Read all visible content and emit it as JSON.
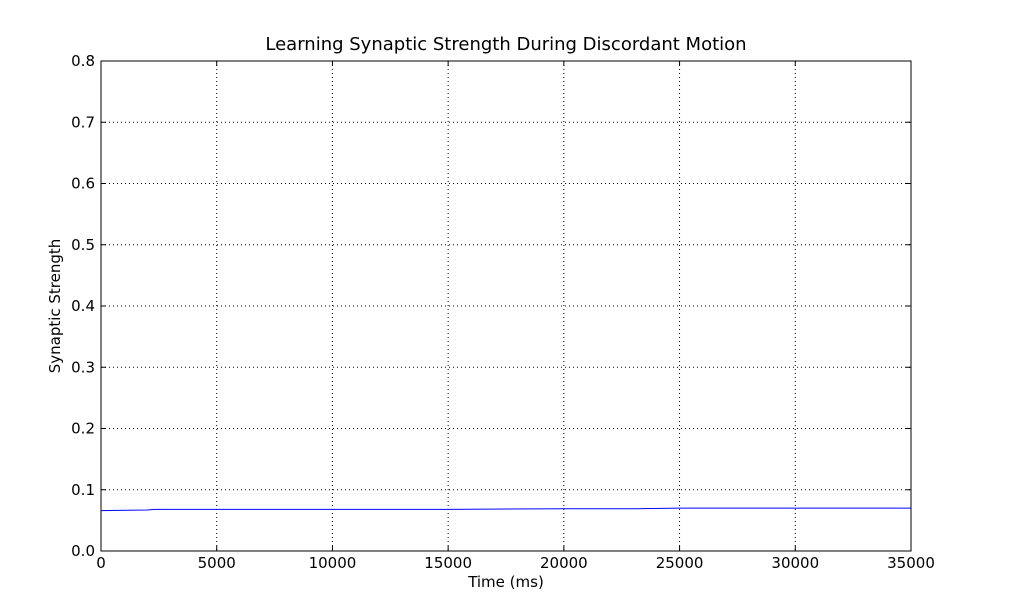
{
  "chart_data": {
    "type": "line",
    "title": "Learning Synaptic Strength During Discordant Motion",
    "xlabel": "Time (ms)",
    "ylabel": "Synaptic Strength",
    "xlim": [
      0,
      35000
    ],
    "ylim": [
      0.0,
      0.8
    ],
    "xticks": [
      0,
      5000,
      10000,
      15000,
      20000,
      25000,
      30000,
      35000
    ],
    "xtick_labels": [
      "0",
      "5000",
      "10000",
      "15000",
      "20000",
      "25000",
      "30000",
      "35000"
    ],
    "yticks": [
      0.0,
      0.1,
      0.2,
      0.3,
      0.4,
      0.5,
      0.6,
      0.7,
      0.8
    ],
    "ytick_labels": [
      "0.0",
      "0.1",
      "0.2",
      "0.3",
      "0.4",
      "0.5",
      "0.6",
      "0.7",
      "0.8"
    ],
    "grid": true,
    "legend": "none",
    "series": [
      {
        "color": "#0000ff",
        "x": [
          0,
          2000,
          2300,
          5000,
          10000,
          15000,
          20000,
          23000,
          25000,
          30000,
          35000
        ],
        "y": [
          0.066,
          0.067,
          0.068,
          0.068,
          0.068,
          0.068,
          0.069,
          0.069,
          0.07,
          0.07,
          0.07
        ]
      }
    ]
  }
}
